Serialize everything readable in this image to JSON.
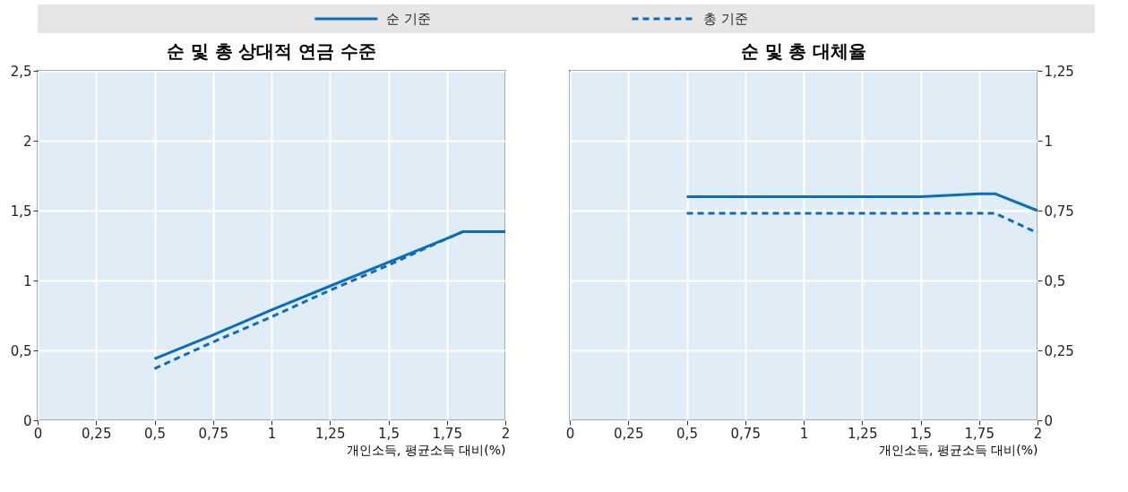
{
  "chart_data": [
    {
      "type": "line",
      "title": "순 및 총 상대적 연금 수준",
      "xlabel": "개인소득, 평균소득 대비(%)",
      "legend": "top",
      "grid": true,
      "x": [
        0.5,
        0.75,
        1,
        1.25,
        1.5,
        1.75,
        1.82,
        2
      ],
      "series": [
        {
          "name": "순 기준",
          "color": "#0a6ebd",
          "line_style": "solid",
          "values": [
            0.44,
            0.61,
            0.79,
            0.96,
            1.13,
            1.3,
            1.35,
            1.35
          ]
        },
        {
          "name": "총 기준",
          "color": "#0a6ebd",
          "line_style": "dashed",
          "values": [
            0.37,
            0.56,
            0.74,
            0.93,
            1.11,
            1.3,
            1.35,
            1.35
          ]
        }
      ],
      "xlim": [
        0,
        2
      ],
      "xticks": [
        0,
        {
          "value": 0.25,
          "label": "0,25"
        },
        {
          "value": 0.5,
          "label": "0,5"
        },
        {
          "value": 0.75,
          "label": "0,75"
        },
        1,
        {
          "value": 1.25,
          "label": "1,25"
        },
        {
          "value": 1.5,
          "label": "1,5"
        },
        {
          "value": 1.75,
          "label": "1,75"
        },
        2
      ],
      "ylim": [
        0,
        2.5
      ],
      "yticks": [
        0,
        {
          "value": 0.5,
          "label": "0,5"
        },
        1,
        {
          "value": 1.5,
          "label": "1,5"
        },
        2,
        {
          "value": 2.5,
          "label": "2,5"
        }
      ]
    },
    {
      "type": "line",
      "title": "순 및 총 대체율",
      "xlabel": "개인소득, 평균소득 대비(%)",
      "legend": "top",
      "grid": true,
      "x": [
        0.5,
        0.75,
        1,
        1.25,
        1.5,
        1.75,
        1.82,
        2
      ],
      "series": [
        {
          "name": "순 기준",
          "color": "#0a6ebd",
          "line_style": "solid",
          "axis": "y2",
          "values": [
            0.8,
            0.8,
            0.8,
            0.8,
            0.8,
            0.81,
            0.81,
            0.75
          ]
        },
        {
          "name": "총 기준",
          "color": "#0a6ebd",
          "line_style": "dashed",
          "axis": "y2",
          "values": [
            0.74,
            0.74,
            0.74,
            0.74,
            0.74,
            0.74,
            0.74,
            0.67
          ]
        }
      ],
      "xlim": [
        0,
        2
      ],
      "xticks": [
        0,
        {
          "value": 0.25,
          "label": "0,25"
        },
        {
          "value": 0.5,
          "label": "0,5"
        },
        {
          "value": 0.75,
          "label": "0,75"
        },
        1,
        {
          "value": 1.25,
          "label": "1,25"
        },
        {
          "value": 1.5,
          "label": "1,5"
        },
        {
          "value": 1.75,
          "label": "1,75"
        },
        2
      ],
      "y2lim": [
        0,
        1.25
      ],
      "y2ticks": [
        0,
        {
          "value": 0.25,
          "label": "0,25"
        },
        {
          "value": 0.5,
          "label": "0,5"
        },
        {
          "value": 0.75,
          "label": "0,75"
        },
        1,
        {
          "value": 1.25,
          "label": "1,25"
        }
      ]
    }
  ]
}
